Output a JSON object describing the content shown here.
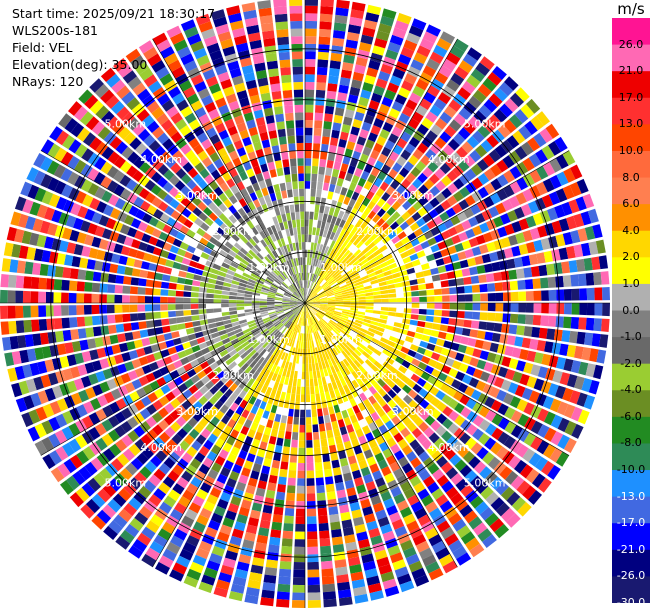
{
  "header": {
    "lines": [
      "Start time: 2025/09/21 18:30:17",
      "WLS200s-181",
      "Field: VEL",
      "Elevation(deg): 35.00",
      "NRays: 120"
    ]
  },
  "colorbar": {
    "unit": "m/s",
    "labels": [
      "26.0",
      "21.0",
      "17.0",
      "13.0",
      "10.0",
      "8.0",
      "6.0",
      "4.0",
      "2.0",
      "1.0",
      "0.0",
      "-1.0",
      "-2.0",
      "-4.0",
      "-6.0",
      "-8.0",
      "-10.0",
      "-13.0",
      "-17.0",
      "-21.0",
      "-26.0",
      "-30.0"
    ],
    "colors": [
      "#ff1493",
      "#ff69b4",
      "#ee0000",
      "#ff3030",
      "#ff4500",
      "#ff6a3c",
      "#ff7f50",
      "#ff9000",
      "#ffd700",
      "#ffff00",
      "#b0b0b0",
      "#808080",
      "#696969",
      "#9acd32",
      "#6b8e23",
      "#228b22",
      "#2e8b57",
      "#1e90ff",
      "#4169e1",
      "#0000ff",
      "#000080",
      "#191970"
    ]
  },
  "chart_data": {
    "type": "heatmap",
    "title": "",
    "field": "VEL",
    "nrays": 120,
    "elevation_deg": 35.0,
    "range_rings_km": [
      1.0,
      2.0,
      3.0,
      4.0,
      5.0
    ],
    "ring_labels": [
      "1.00km",
      "2.00km",
      "3.00km",
      "4.00km",
      "5.00km"
    ],
    "max_range_km": 6.0,
    "spoke_interval_deg": 30,
    "value_range": [
      -30.0,
      30.0
    ],
    "pattern": {
      "near_east_south": "positive ~1 to 4 m/s (yellow)",
      "near_west": "negative ~-1 to -6 m/s (green / grey)",
      "outer_ranges": "noise across full velocity range"
    }
  }
}
